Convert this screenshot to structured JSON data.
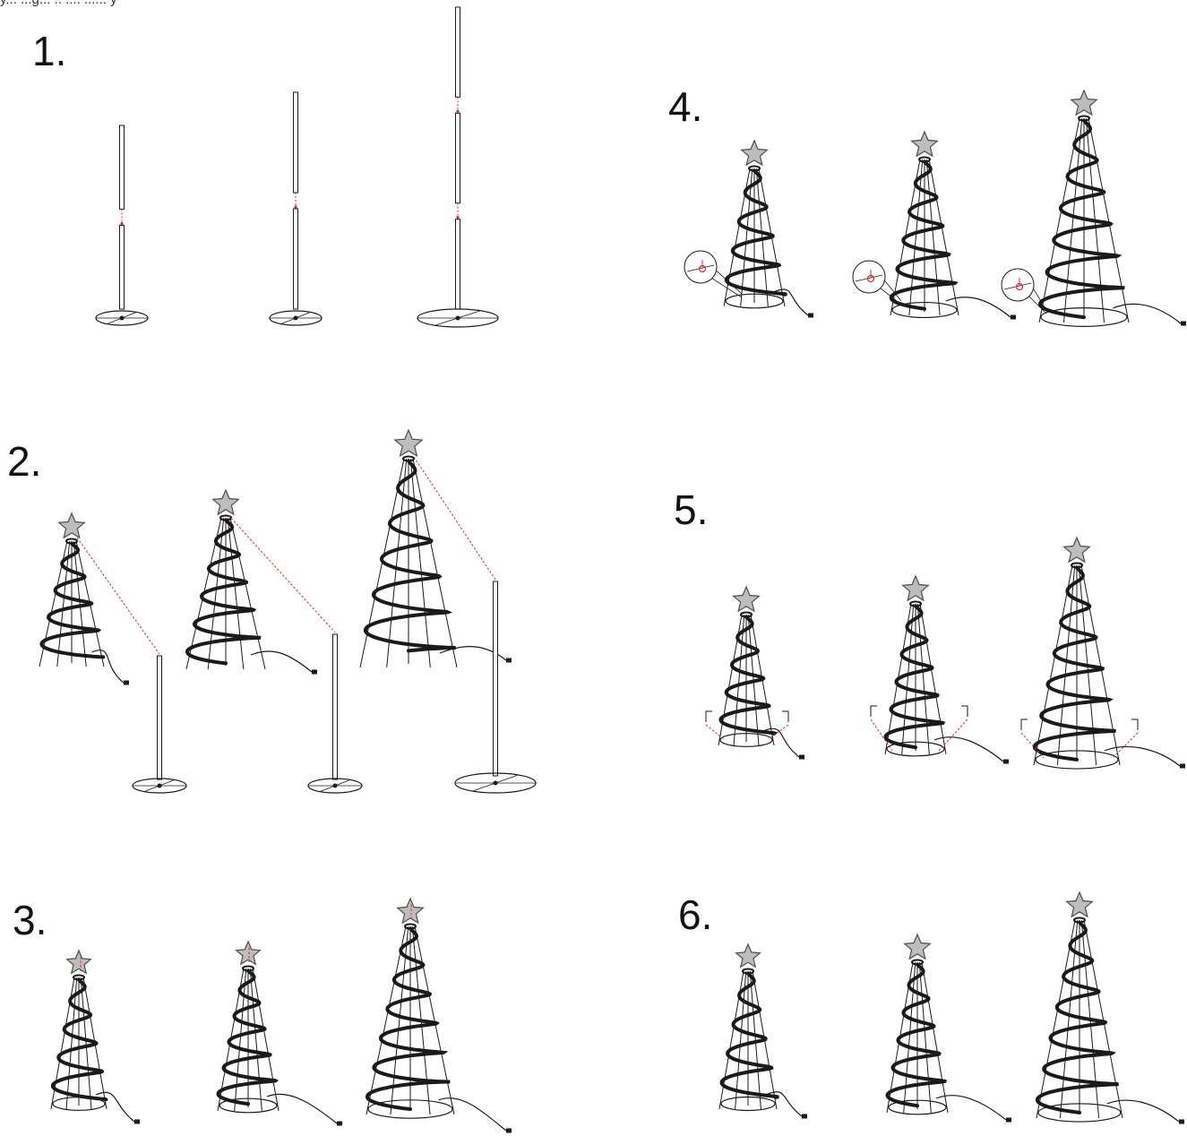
{
  "top_text": "y... ...g... .. .... ...... y",
  "steps": [
    {
      "label": "1."
    },
    {
      "label": "2."
    },
    {
      "label": "3."
    },
    {
      "label": "4."
    },
    {
      "label": "5."
    },
    {
      "label": "6."
    }
  ],
  "colors": {
    "line": "#1a1a1a",
    "guide": "#e0262b",
    "star_fill": "#bdbdbd",
    "star_stroke": "#4d4d4d"
  },
  "icons": [
    "star-icon",
    "pole-section-icon",
    "base-stand-icon",
    "spiral-tree-icon",
    "stake-icon",
    "zoom-callout-icon",
    "power-plug-icon"
  ]
}
